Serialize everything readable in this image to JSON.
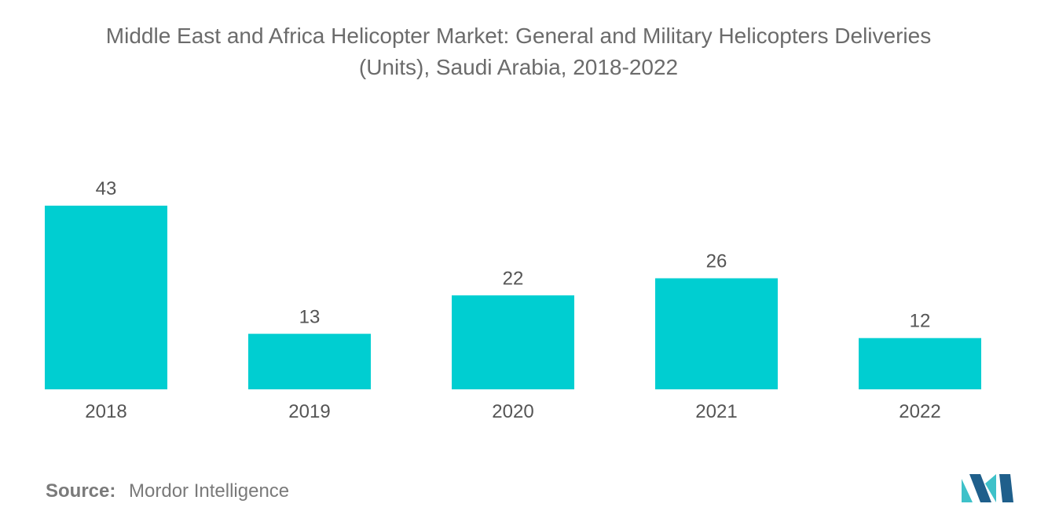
{
  "title": {
    "line1": "Middle East and Africa Helicopter Market: General and Military Helicopters Deliveries",
    "line2": "(Units), Saudi Arabia, 2018-2022"
  },
  "source": {
    "label": "Source:",
    "value": "Mordor Intelligence"
  },
  "colors": {
    "bar": "#00ced1",
    "text": "#555555",
    "title": "#6b6b6b",
    "logo_dark": "#1f5f8b",
    "logo_light": "#3ec1c9"
  },
  "logo": {
    "icon": "mordor-intelligence-logo-icon"
  },
  "chart_data": {
    "type": "bar",
    "categories": [
      "2018",
      "2019",
      "2020",
      "2021",
      "2022"
    ],
    "values": [
      43,
      13,
      22,
      26,
      12
    ],
    "title": "Middle East and Africa Helicopter Market: General and Military Helicopters Deliveries (Units), Saudi Arabia, 2018-2022",
    "xlabel": "",
    "ylabel": "",
    "ylim": [
      0,
      43
    ],
    "grid": false,
    "legend": "none",
    "data_labels": true
  }
}
